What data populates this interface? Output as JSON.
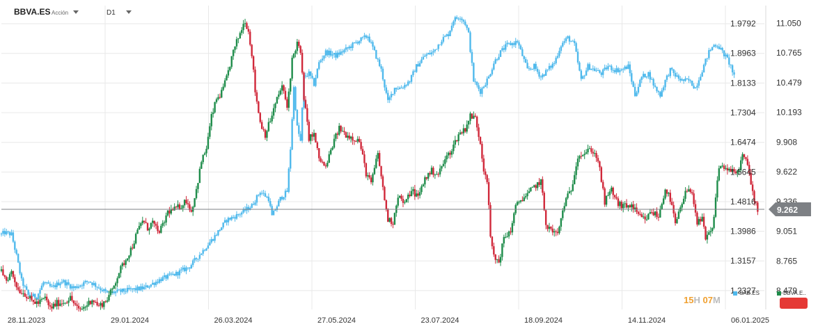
{
  "header": {
    "symbol": "BBVA.ES",
    "subtitle": "Acción",
    "timeframe": "D1"
  },
  "timer": {
    "hours": "15",
    "hours_unit": "H",
    "minutes": "07",
    "minutes_unit": "M"
  },
  "colors": {
    "sab": "#4fb9ec",
    "bull": "#1e8c4a",
    "bear": "#d0283a",
    "grid": "#e8e8e8",
    "price_line": "#7d8084",
    "price_tag": "#7d8084",
    "button": "#e53935",
    "timer": "#f0a030"
  },
  "chart_data": {
    "type": "candlestick",
    "x_tick_labels": [
      "28.11.2023",
      "29.01.2024",
      "26.03.2024",
      "27.05.2024",
      "23.07.2024",
      "18.09.2024",
      "14.11.2024",
      "06.01.2025"
    ],
    "left_axis": {
      "ticks": [
        "1.9792",
        "1.8963",
        "1.8133",
        "1.7304",
        "1.6474",
        "1.5645",
        "1.4816",
        "1.3986",
        "1.3157",
        "1.2327"
      ],
      "range": [
        1.18,
        2.03
      ]
    },
    "right_axis": {
      "ticks": [
        "11.050",
        "10.765",
        "10.479",
        "10.193",
        "9.908",
        "9.622",
        "9.336",
        "9.051",
        "8.765",
        "8.479"
      ],
      "range": [
        8.3,
        11.22
      ]
    },
    "current_price": "9.262",
    "grid": true,
    "legend": {
      "placement": "bottom-right",
      "entries": [
        {
          "name": "SAB.ES",
          "color": "#4fb9ec"
        },
        {
          "name": "BBVA.E..",
          "color": "#1e8c4a"
        }
      ]
    },
    "series": [
      {
        "name": "SAB.ES",
        "axis": "left",
        "points": [
          [
            0,
            1.39
          ],
          [
            2,
            1.395
          ],
          [
            6,
            1.39
          ],
          [
            9,
            1.33
          ],
          [
            12,
            1.26
          ],
          [
            16,
            1.22
          ],
          [
            21,
            1.215
          ],
          [
            25,
            1.255
          ],
          [
            30,
            1.24
          ],
          [
            36,
            1.26
          ],
          [
            43,
            1.24
          ],
          [
            52,
            1.26
          ],
          [
            60,
            1.235
          ],
          [
            63,
            1.225
          ],
          [
            70,
            1.23
          ],
          [
            85,
            1.24
          ],
          [
            95,
            1.265
          ],
          [
            104,
            1.28
          ],
          [
            112,
            1.3
          ],
          [
            120,
            1.345
          ],
          [
            127,
            1.385
          ],
          [
            134,
            1.43
          ],
          [
            141,
            1.445
          ],
          [
            149,
            1.47
          ],
          [
            154,
            1.51
          ],
          [
            159,
            1.49
          ],
          [
            161,
            1.44
          ],
          [
            166,
            1.49
          ],
          [
            170,
            1.51
          ],
          [
            172,
            1.63
          ],
          [
            174,
            1.8
          ],
          [
            176,
            1.69
          ],
          [
            178,
            1.65
          ],
          [
            180,
            1.83
          ],
          [
            183,
            1.84
          ],
          [
            186,
            1.81
          ],
          [
            189,
            1.87
          ],
          [
            193,
            1.9
          ],
          [
            199,
            1.89
          ],
          [
            206,
            1.91
          ],
          [
            212,
            1.93
          ],
          [
            218,
            1.945
          ],
          [
            222,
            1.9
          ],
          [
            226,
            1.85
          ],
          [
            230,
            1.76
          ],
          [
            234,
            1.8
          ],
          [
            238,
            1.8
          ],
          [
            243,
            1.82
          ],
          [
            247,
            1.86
          ],
          [
            252,
            1.89
          ],
          [
            257,
            1.9
          ],
          [
            262,
            1.935
          ],
          [
            266,
            1.95
          ],
          [
            269,
            1.99
          ],
          [
            273,
            2.0
          ],
          [
            276,
            1.98
          ],
          [
            278,
            1.95
          ],
          [
            281,
            1.82
          ],
          [
            285,
            1.79
          ],
          [
            290,
            1.83
          ],
          [
            293,
            1.87
          ],
          [
            297,
            1.9
          ],
          [
            301,
            1.92
          ],
          [
            305,
            1.925
          ],
          [
            307,
            1.93
          ],
          [
            310,
            1.89
          ],
          [
            313,
            1.85
          ],
          [
            317,
            1.86
          ],
          [
            321,
            1.83
          ],
          [
            325,
            1.85
          ],
          [
            329,
            1.87
          ],
          [
            333,
            1.92
          ],
          [
            337,
            1.94
          ],
          [
            341,
            1.92
          ],
          [
            345,
            1.82
          ],
          [
            349,
            1.86
          ],
          [
            353,
            1.85
          ],
          [
            357,
            1.84
          ],
          [
            361,
            1.86
          ],
          [
            365,
            1.85
          ],
          [
            369,
            1.85
          ],
          [
            373,
            1.86
          ],
          [
            377,
            1.78
          ],
          [
            381,
            1.83
          ],
          [
            385,
            1.84
          ],
          [
            389,
            1.8
          ],
          [
            392,
            1.78
          ],
          [
            395,
            1.82
          ],
          [
            398,
            1.85
          ],
          [
            402,
            1.83
          ],
          [
            405,
            1.82
          ],
          [
            409,
            1.82
          ],
          [
            413,
            1.8
          ],
          [
            417,
            1.85
          ],
          [
            421,
            1.9
          ],
          [
            424,
            1.92
          ],
          [
            426,
            1.92
          ],
          [
            429,
            1.9
          ],
          [
            432,
            1.88
          ],
          [
            434,
            1.86
          ],
          [
            436,
            1.83
          ]
        ]
      },
      {
        "name": "BBVA.ES",
        "axis": "right",
        "points": [
          [
            0,
            8.67
          ],
          [
            3,
            8.58
          ],
          [
            6,
            8.66
          ],
          [
            10,
            8.49
          ],
          [
            14,
            8.45
          ],
          [
            18,
            8.38
          ],
          [
            22,
            8.36
          ],
          [
            26,
            8.41
          ],
          [
            29,
            8.31
          ],
          [
            33,
            8.36
          ],
          [
            37,
            8.37
          ],
          [
            41,
            8.41
          ],
          [
            46,
            8.29
          ],
          [
            50,
            8.33
          ],
          [
            54,
            8.4
          ],
          [
            58,
            8.33
          ],
          [
            62,
            8.38
          ],
          [
            66,
            8.49
          ],
          [
            70,
            8.66
          ],
          [
            74,
            8.78
          ],
          [
            78,
            8.91
          ],
          [
            81,
            9.05
          ],
          [
            84,
            9.16
          ],
          [
            87,
            9.08
          ],
          [
            90,
            9.14
          ],
          [
            93,
            9.04
          ],
          [
            96,
            9.1
          ],
          [
            99,
            9.24
          ],
          [
            103,
            9.26
          ],
          [
            107,
            9.3
          ],
          [
            110,
            9.35
          ],
          [
            113,
            9.24
          ],
          [
            116,
            9.45
          ],
          [
            119,
            9.72
          ],
          [
            122,
            9.85
          ],
          [
            125,
            10.15
          ],
          [
            128,
            10.32
          ],
          [
            131,
            10.38
          ],
          [
            134,
            10.52
          ],
          [
            137,
            10.72
          ],
          [
            140,
            10.87
          ],
          [
            143,
            11.0
          ],
          [
            145,
            11.08
          ],
          [
            147,
            10.97
          ],
          [
            149,
            10.76
          ],
          [
            151,
            10.4
          ],
          [
            154,
            10.1
          ],
          [
            157,
            9.98
          ],
          [
            160,
            10.12
          ],
          [
            164,
            10.32
          ],
          [
            167,
            10.45
          ],
          [
            170,
            10.24
          ],
          [
            173,
            10.7
          ],
          [
            176,
            10.86
          ],
          [
            178,
            10.76
          ],
          [
            180,
            10.34
          ],
          [
            183,
            9.95
          ],
          [
            186,
            9.98
          ],
          [
            189,
            9.75
          ],
          [
            193,
            9.66
          ],
          [
            197,
            9.88
          ],
          [
            201,
            10.04
          ],
          [
            205,
            9.98
          ],
          [
            209,
            9.95
          ],
          [
            213,
            9.92
          ],
          [
            217,
            9.61
          ],
          [
            220,
            9.51
          ],
          [
            224,
            9.8
          ],
          [
            227,
            9.46
          ],
          [
            230,
            9.16
          ],
          [
            233,
            9.14
          ],
          [
            236,
            9.4
          ],
          [
            240,
            9.31
          ],
          [
            244,
            9.45
          ],
          [
            248,
            9.38
          ],
          [
            252,
            9.56
          ],
          [
            256,
            9.63
          ],
          [
            260,
            9.6
          ],
          [
            264,
            9.74
          ],
          [
            268,
            9.84
          ],
          [
            272,
            9.98
          ],
          [
            276,
            10.04
          ],
          [
            279,
            10.16
          ],
          [
            282,
            10.14
          ],
          [
            285,
            9.9
          ],
          [
            287,
            9.65
          ],
          [
            289,
            9.55
          ],
          [
            291,
            9.0
          ],
          [
            293,
            8.8
          ],
          [
            296,
            8.76
          ],
          [
            299,
            8.98
          ],
          [
            303,
            9.06
          ],
          [
            306,
            9.28
          ],
          [
            309,
            9.36
          ],
          [
            313,
            9.4
          ],
          [
            317,
            9.48
          ],
          [
            321,
            9.53
          ],
          [
            324,
            9.12
          ],
          [
            327,
            9.06
          ],
          [
            331,
            9.02
          ],
          [
            335,
            9.32
          ],
          [
            339,
            9.45
          ],
          [
            343,
            9.78
          ],
          [
            347,
            9.8
          ],
          [
            351,
            9.84
          ],
          [
            355,
            9.74
          ],
          [
            359,
            9.33
          ],
          [
            363,
            9.45
          ],
          [
            367,
            9.31
          ],
          [
            371,
            9.29
          ],
          [
            375,
            9.3
          ],
          [
            379,
            9.2
          ],
          [
            383,
            9.16
          ],
          [
            387,
            9.24
          ],
          [
            391,
            9.19
          ],
          [
            395,
            9.46
          ],
          [
            398,
            9.36
          ],
          [
            401,
            9.12
          ],
          [
            404,
            9.26
          ],
          [
            407,
            9.42
          ],
          [
            411,
            9.44
          ],
          [
            414,
            9.13
          ],
          [
            417,
            9.16
          ],
          [
            419,
            8.98
          ],
          [
            423,
            9.06
          ],
          [
            427,
            9.68
          ],
          [
            431,
            9.66
          ],
          [
            435,
            9.62
          ],
          [
            438,
            9.61
          ],
          [
            441,
            9.78
          ],
          [
            444,
            9.69
          ],
          [
            447,
            9.42
          ],
          [
            450,
            9.26
          ]
        ]
      }
    ]
  }
}
